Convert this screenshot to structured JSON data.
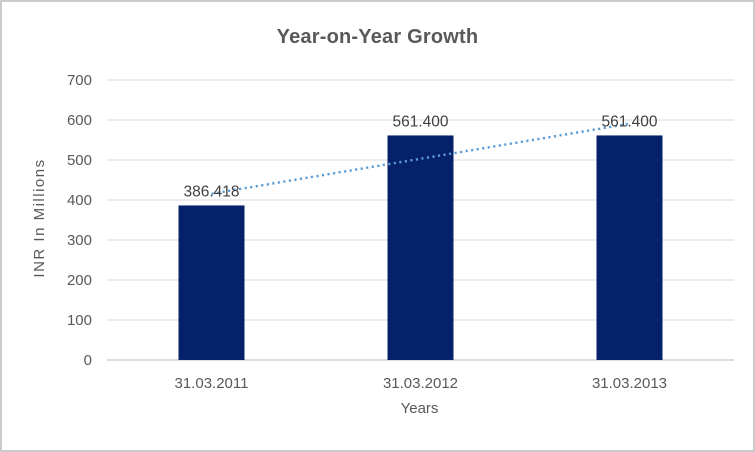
{
  "chart_data": {
    "type": "bar",
    "title": "Year-on-Year Growth",
    "categories": [
      "31.03.2011",
      "31.03.2012",
      "31.03.2013"
    ],
    "values": [
      386.418,
      561.4,
      561.4
    ],
    "data_labels": [
      "386.418",
      "561.400",
      "561.400"
    ],
    "xlabel": "Years",
    "ylabel": "INR In Millions",
    "ylim": [
      0,
      700
    ],
    "yticks": [
      0,
      100,
      200,
      300,
      400,
      500,
      600,
      700
    ],
    "grid": true,
    "legend": "none",
    "trendline": {
      "style": "dotted",
      "start_value": 415.6,
      "end_value": 590.6
    },
    "colors": {
      "bar": "#04216A",
      "trendline": "#5B9BD5",
      "title_text": "#595959",
      "axis_text": "#595959",
      "data_label_text": "#404040",
      "gridline": "#D9D9D9",
      "axis_line": "#C6C6C6",
      "frame_border": "#CBCBCB"
    }
  }
}
